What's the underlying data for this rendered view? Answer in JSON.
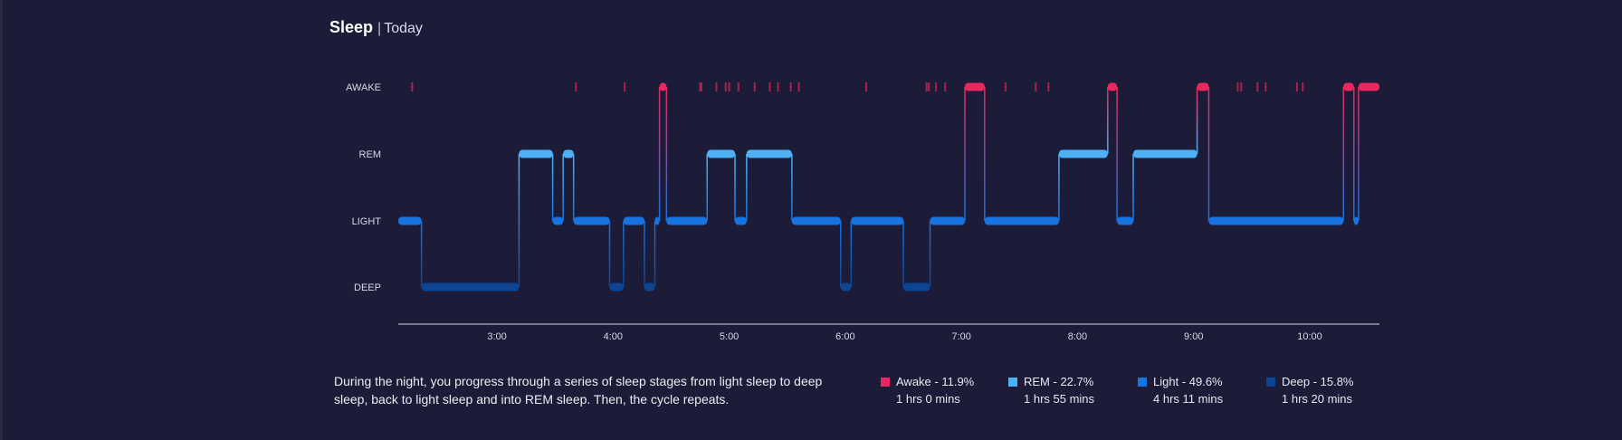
{
  "header": {
    "title": "Sleep",
    "separator": "|",
    "subtitle": "Today"
  },
  "description": "During the night, you progress through a series of sleep stages from light sleep to deep sleep, back to light sleep and into REM sleep. Then, the cycle repeats.",
  "legend": [
    {
      "label": "Awake - 11.9%",
      "duration": "1 hrs 0 mins",
      "color": "#e8285e"
    },
    {
      "label": "REM - 22.7%",
      "duration": "1 hrs 55 mins",
      "color": "#4fb1f5"
    },
    {
      "label": "Light - 49.6%",
      "duration": "4 hrs 11 mins",
      "color": "#1673df"
    },
    {
      "label": "Deep - 15.8%",
      "duration": "1 hrs 20 mins",
      "color": "#0d4593"
    }
  ],
  "chart_data": {
    "type": "area",
    "title": "Sleep",
    "subtitle": "Today",
    "y_categories": [
      "AWAKE",
      "REM",
      "LIGHT",
      "DEEP"
    ],
    "x_ticks": [
      "3:00",
      "4:00",
      "5:00",
      "6:00",
      "7:00",
      "8:00",
      "9:00",
      "10:00"
    ],
    "x_range_hours": [
      2.15,
      10.6
    ],
    "colors": {
      "awake": "#e8285e",
      "rem": "#4fb1f5",
      "light": "#1673df",
      "deep": "#0d4593"
    },
    "segments": [
      {
        "stage": "LIGHT",
        "start": 2.15,
        "end": 2.35
      },
      {
        "stage": "DEEP",
        "start": 2.35,
        "end": 3.19
      },
      {
        "stage": "REM",
        "start": 3.19,
        "end": 3.48
      },
      {
        "stage": "LIGHT",
        "start": 3.48,
        "end": 3.57
      },
      {
        "stage": "REM",
        "start": 3.57,
        "end": 3.66
      },
      {
        "stage": "LIGHT",
        "start": 3.66,
        "end": 3.97
      },
      {
        "stage": "DEEP",
        "start": 3.97,
        "end": 4.09
      },
      {
        "stage": "LIGHT",
        "start": 4.09,
        "end": 4.27
      },
      {
        "stage": "DEEP",
        "start": 4.27,
        "end": 4.36
      },
      {
        "stage": "LIGHT",
        "start": 4.36,
        "end": 4.4
      },
      {
        "stage": "AWAKE",
        "start": 4.4,
        "end": 4.46
      },
      {
        "stage": "LIGHT",
        "start": 4.46,
        "end": 4.81
      },
      {
        "stage": "REM",
        "start": 4.81,
        "end": 5.05
      },
      {
        "stage": "LIGHT",
        "start": 5.05,
        "end": 5.15
      },
      {
        "stage": "REM",
        "start": 5.15,
        "end": 5.54
      },
      {
        "stage": "LIGHT",
        "start": 5.54,
        "end": 5.96
      },
      {
        "stage": "DEEP",
        "start": 5.96,
        "end": 6.05
      },
      {
        "stage": "LIGHT",
        "start": 6.05,
        "end": 6.5
      },
      {
        "stage": "DEEP",
        "start": 6.5,
        "end": 6.73
      },
      {
        "stage": "LIGHT",
        "start": 6.73,
        "end": 7.03
      },
      {
        "stage": "AWAKE",
        "start": 7.03,
        "end": 7.2
      },
      {
        "stage": "LIGHT",
        "start": 7.2,
        "end": 7.84
      },
      {
        "stage": "REM",
        "start": 7.84,
        "end": 8.26
      },
      {
        "stage": "AWAKE",
        "start": 8.26,
        "end": 8.34
      },
      {
        "stage": "LIGHT",
        "start": 8.34,
        "end": 8.48
      },
      {
        "stage": "REM",
        "start": 8.48,
        "end": 9.03
      },
      {
        "stage": "AWAKE",
        "start": 9.03,
        "end": 9.13
      },
      {
        "stage": "LIGHT",
        "start": 9.13,
        "end": 10.29
      },
      {
        "stage": "AWAKE",
        "start": 10.29,
        "end": 10.38
      },
      {
        "stage": "LIGHT",
        "start": 10.38,
        "end": 10.42
      },
      {
        "stage": "AWAKE",
        "start": 10.42,
        "end": 10.6
      }
    ],
    "brief_awakenings": [
      2.27,
      3.68,
      4.1,
      4.75,
      4.76,
      4.89,
      4.97,
      5.0,
      5.08,
      5.22,
      5.35,
      5.42,
      5.53,
      5.6,
      6.18,
      6.7,
      6.72,
      6.78,
      6.86,
      7.38,
      7.64,
      7.75,
      9.38,
      9.41,
      9.55,
      9.62,
      9.89,
      9.94
    ]
  }
}
